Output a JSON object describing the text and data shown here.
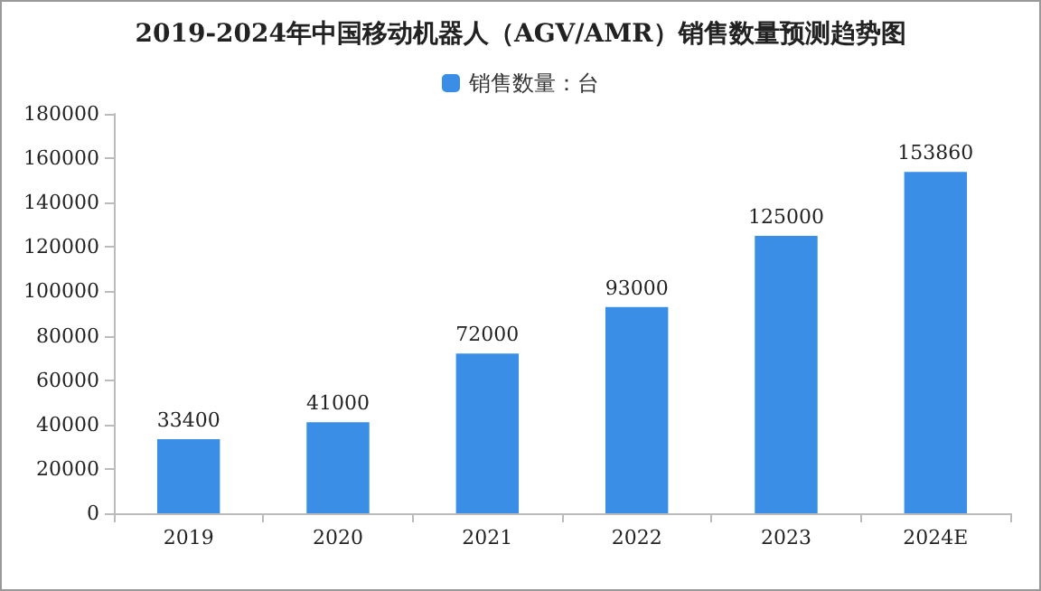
{
  "chart_data": {
    "type": "bar",
    "title": "2019-2024年中国移动机器人（AGV/AMR）销售数量预测趋势图",
    "categories": [
      "2019",
      "2020",
      "2021",
      "2022",
      "2023",
      "2024E"
    ],
    "series": [
      {
        "name": "销售数量：台",
        "color": "#3a8ee6",
        "values": [
          33400,
          41000,
          72000,
          93000,
          125000,
          153860
        ]
      }
    ],
    "ylim": [
      0,
      180000
    ],
    "yticks": [
      0,
      20000,
      40000,
      60000,
      80000,
      100000,
      120000,
      140000,
      160000,
      180000
    ],
    "data_labels": true,
    "grid": false,
    "legend": "top"
  }
}
